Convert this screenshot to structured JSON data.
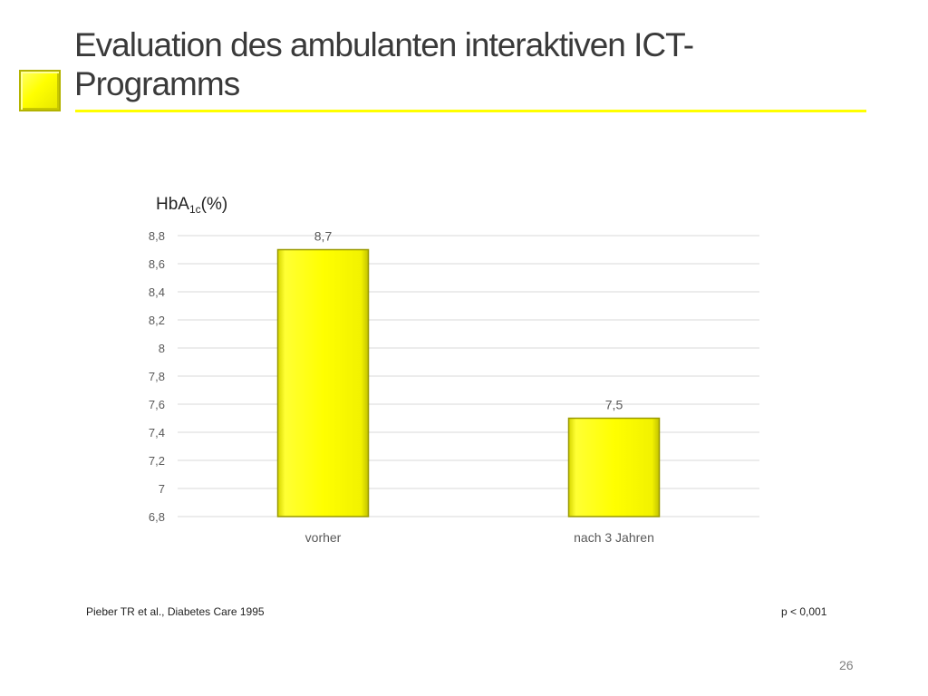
{
  "slide": {
    "title": "Evaluation des ambulanten interaktiven ICT-Programms",
    "reference": "Pieber TR et al., Diabetes Care 1995",
    "p_value": "p < 0,001",
    "page_number": "26"
  },
  "colors": {
    "accent": "#ffff00",
    "bar_fill": "#ffff00",
    "bar_border": "#999900",
    "grid": "#d9d9d9",
    "text": "#595959"
  },
  "chart_data": {
    "type": "bar",
    "ylabel_base": "HbA",
    "ylabel_sub": "1c",
    "ylabel_suffix": "(%)",
    "categories": [
      "vorher",
      "nach 3 Jahren"
    ],
    "values": [
      8.7,
      7.5
    ],
    "data_labels": [
      "8,7",
      "7,5"
    ],
    "ylim": [
      6.8,
      8.8
    ],
    "yticks": [
      6.8,
      7.0,
      7.2,
      7.4,
      7.6,
      7.8,
      8.0,
      8.2,
      8.4,
      8.6,
      8.8
    ],
    "ytick_labels": [
      "6,8",
      "7",
      "7,2",
      "7,4",
      "7,6",
      "7,8",
      "8",
      "8,2",
      "8,4",
      "8,6",
      "8,8"
    ],
    "grid": true,
    "legend": "none"
  }
}
